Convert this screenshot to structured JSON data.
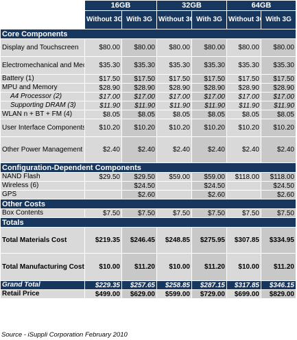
{
  "header": {
    "capacities": [
      "16GB",
      "32GB",
      "64GB"
    ],
    "sub": [
      "Without 3G",
      "With 3G"
    ]
  },
  "sections": [
    {
      "title": "Core Components",
      "rows": [
        {
          "label": "Display and Touchscreen",
          "values": [
            "$80.00",
            "$80.00",
            "$80.00",
            "$80.00",
            "$80.00",
            "$80.00"
          ]
        },
        {
          "label": "Electromechanical and Mechanical",
          "values": [
            "$35.30",
            "$35.30",
            "$35.30",
            "$35.30",
            "$35.30",
            "$35.30"
          ]
        },
        {
          "label": "Battery (1)",
          "values": [
            "$17.50",
            "$17.50",
            "$17.50",
            "$17.50",
            "$17.50",
            "$17.50"
          ]
        },
        {
          "label": "MPU and Memory",
          "values": [
            "$28.90",
            "$28.90",
            "$28.90",
            "$28.90",
            "$28.90",
            "$28.90"
          ]
        },
        {
          "label": "A4 Processor (2)",
          "values": [
            "$17.00",
            "$17.00",
            "$17.00",
            "$17.00",
            "$17.00",
            "$17.00"
          ],
          "italic": true
        },
        {
          "label": "Supporting DRAM (3)",
          "values": [
            "$11.90",
            "$11.90",
            "$11.90",
            "$11.90",
            "$11.90",
            "$11.90"
          ],
          "italic": true
        },
        {
          "label": "WLAN n + BT + FM (4)",
          "values": [
            "$8.05",
            "$8.05",
            "$8.05",
            "$8.05",
            "$8.05",
            "$8.05"
          ]
        },
        {
          "label": "User Interface Components (5)",
          "values": [
            "$10.20",
            "$10.20",
            "$10.20",
            "$10.20",
            "$10.20",
            "$10.20"
          ]
        },
        {
          "label": "Other Power Management Components",
          "values": [
            "$2.40",
            "$2.40",
            "$2.40",
            "$2.40",
            "$2.40",
            "$2.40"
          ]
        }
      ]
    },
    {
      "title": "Configuration-Dependent Components",
      "rows": [
        {
          "label": "NAND Flash",
          "values": [
            "$29.50",
            "$29.50",
            "$59.00",
            "$59.00",
            "$118.00",
            "$118.00"
          ]
        },
        {
          "label": "Wireless (6)",
          "values": [
            "",
            "$24.50",
            "",
            "$24.50",
            "",
            "$24.50"
          ]
        },
        {
          "label": "GPS",
          "values": [
            "",
            "$2.60",
            "",
            "$2.60",
            "",
            "$2.60"
          ]
        }
      ]
    },
    {
      "title": "Other Costs",
      "rows": [
        {
          "label": "Box Contents",
          "values": [
            "$7.50",
            "$7.50",
            "$7.50",
            "$7.50",
            "$7.50",
            "$7.50"
          ]
        }
      ]
    },
    {
      "title": "Totals",
      "rows": [
        {
          "label": "Total Materials Cost",
          "values": [
            "$219.35",
            "$246.45",
            "$248.85",
            "$275.95",
            "$307.85",
            "$334.95"
          ],
          "bold": true
        },
        {
          "label": "Total Manufacturing Cost",
          "values": [
            "$10.00",
            "$11.20",
            "$10.00",
            "$11.20",
            "$10.00",
            "$11.20"
          ],
          "bold": true
        }
      ]
    }
  ],
  "grand_total": {
    "label": "Grand Total",
    "values": [
      "$229.35",
      "$257.65",
      "$258.85",
      "$287.15",
      "$317.85",
      "$346.15"
    ]
  },
  "retail_price": {
    "label": "Retail Price",
    "values": [
      "$499.00",
      "$629.00",
      "$599.00",
      "$729.00",
      "$699.00",
      "$829.00"
    ]
  },
  "source": "Source - iSuppli Corporation February 2010",
  "colors": {
    "header_bg": "#17375e",
    "row_bg": "#d9d9d9",
    "alt_col_bg": "#c8c8c8"
  }
}
